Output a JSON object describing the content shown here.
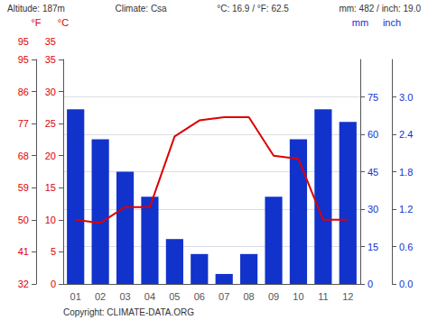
{
  "chart_data": {
    "type": "bar",
    "categories": [
      "01",
      "02",
      "03",
      "04",
      "05",
      "06",
      "07",
      "08",
      "09",
      "10",
      "11",
      "12"
    ],
    "series": [
      {
        "type": "bar",
        "color": "#1133cc",
        "axis": "y2",
        "values": [
          70,
          58,
          45,
          35,
          18,
          12,
          4,
          12,
          35,
          58,
          70,
          65
        ]
      },
      {
        "type": "line",
        "color": "#dd0000",
        "values": [
          10,
          9.5,
          12,
          12,
          23,
          25.5,
          26,
          26,
          20,
          19.5,
          10,
          10
        ]
      }
    ],
    "ylabel": "°C",
    "ylim": [
      0,
      35
    ],
    "yticks": [
      0,
      5,
      10,
      15,
      20,
      25,
      30,
      35
    ],
    "y2label": "mm",
    "y2lim": [
      0,
      90
    ],
    "y2ticks": [
      0,
      15,
      30,
      45,
      60,
      75
    ],
    "y3label": "°F",
    "y3lim": [
      0,
      35
    ],
    "y3ticks": [
      {
        "value": 0,
        "label": "32"
      },
      {
        "value": 5,
        "label": "41"
      },
      {
        "value": 10,
        "label": "50"
      },
      {
        "value": 15,
        "label": "59"
      },
      {
        "value": 20,
        "label": "68"
      },
      {
        "value": 25,
        "label": "77"
      },
      {
        "value": 30,
        "label": "86"
      },
      {
        "value": 35,
        "label": "95"
      }
    ],
    "y4label": "inch",
    "y4lim": [
      0,
      90
    ],
    "y4ticks": [
      {
        "value": 0,
        "label": "0.0"
      },
      {
        "value": 15,
        "label": "0.6"
      },
      {
        "value": 30,
        "label": "1.2"
      },
      {
        "value": 45,
        "label": "1.8"
      },
      {
        "value": 60,
        "label": "2.4"
      },
      {
        "value": 75,
        "label": "3.0"
      }
    ],
    "annotations": [
      "Altitude: 187m",
      "Climate: Csa",
      "°C: 16.9 / °F: 62.5",
      "mm: 482 / inch: 19.0"
    ],
    "y_note": "35",
    "y3_note": "95",
    "footnote": "Copyright: CLIMATE-DATA.ORG",
    "grid": true
  }
}
